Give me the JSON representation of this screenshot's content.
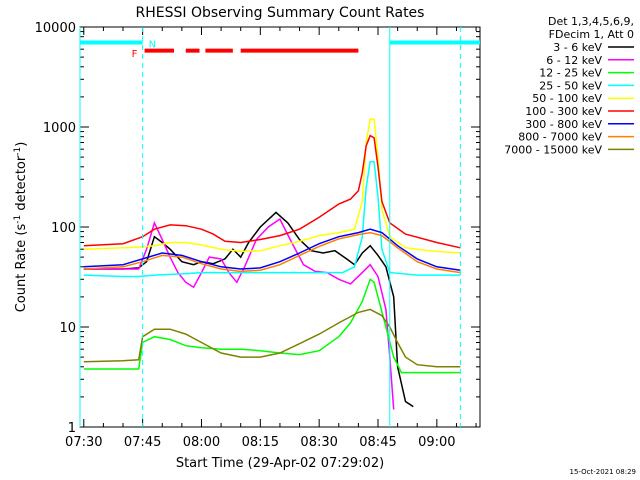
{
  "chart_data": {
    "type": "line",
    "title": "RHESSI Observing Summary Count Rates",
    "xlabel": "Start Time (29-Apr-02 07:29:02)",
    "ylabel": "Count Rate (s",
    "ylabel_sup1": "-1",
    "ylabel_mid": " detector",
    "ylabel_sup2": "-1",
    "ylabel_end": ")",
    "yscale": "log",
    "ylim": [
      1,
      10000
    ],
    "xlim": [
      "07:29:02",
      "09:11:00"
    ],
    "x_ticks": [
      "07:30",
      "07:45",
      "08:00",
      "08:15",
      "08:30",
      "08:45",
      "09:00"
    ],
    "y_ticks": [
      "1",
      "10",
      "100",
      "1000",
      "10000"
    ],
    "legend_position": "top-right",
    "legend_header": [
      "Det 1,3,4,5,6,9,",
      "FDecim 1, Att 0"
    ],
    "series": [
      {
        "name": "3 - 6 keV",
        "color": "#000000",
        "points": [
          [
            "07:30",
            38
          ],
          [
            "07:40",
            38
          ],
          [
            "07:44",
            39
          ],
          [
            "07:46",
            45
          ],
          [
            "07:48",
            80
          ],
          [
            "07:50",
            70
          ],
          [
            "07:52",
            60
          ],
          [
            "07:55",
            45
          ],
          [
            "07:58",
            42
          ],
          [
            "08:00",
            45
          ],
          [
            "08:03",
            43
          ],
          [
            "08:06",
            48
          ],
          [
            "08:08",
            60
          ],
          [
            "08:10",
            50
          ],
          [
            "08:12",
            70
          ],
          [
            "08:15",
            100
          ],
          [
            "08:19",
            140
          ],
          [
            "08:22",
            110
          ],
          [
            "08:25",
            75
          ],
          [
            "08:28",
            58
          ],
          [
            "08:31",
            55
          ],
          [
            "08:34",
            58
          ],
          [
            "08:37",
            48
          ],
          [
            "08:39",
            42
          ],
          [
            "08:41",
            55
          ],
          [
            "08:43",
            65
          ],
          [
            "08:45",
            52
          ],
          [
            "08:47",
            40
          ],
          [
            "08:49",
            20
          ],
          [
            "08:50",
            4
          ],
          [
            "08:52",
            1.8
          ],
          [
            "08:54",
            1.6
          ]
        ]
      },
      {
        "name": "6 - 12 keV",
        "color": "#ff00ff",
        "points": [
          [
            "07:30",
            38
          ],
          [
            "07:40",
            38
          ],
          [
            "07:44",
            38
          ],
          [
            "07:46",
            60
          ],
          [
            "07:48",
            110
          ],
          [
            "07:50",
            75
          ],
          [
            "07:52",
            50
          ],
          [
            "07:54",
            35
          ],
          [
            "07:56",
            28
          ],
          [
            "07:58",
            25
          ],
          [
            "08:00",
            35
          ],
          [
            "08:02",
            50
          ],
          [
            "08:05",
            48
          ],
          [
            "08:07",
            35
          ],
          [
            "08:09",
            28
          ],
          [
            "08:11",
            40
          ],
          [
            "08:14",
            75
          ],
          [
            "08:17",
            100
          ],
          [
            "08:20",
            120
          ],
          [
            "08:23",
            70
          ],
          [
            "08:26",
            42
          ],
          [
            "08:29",
            36
          ],
          [
            "08:32",
            35
          ],
          [
            "08:35",
            30
          ],
          [
            "08:38",
            27
          ],
          [
            "08:41",
            35
          ],
          [
            "08:43",
            42
          ],
          [
            "08:45",
            32
          ],
          [
            "08:47",
            15
          ],
          [
            "08:48",
            5
          ],
          [
            "08:49",
            1.5
          ]
        ]
      },
      {
        "name": "12 - 25 keV",
        "color": "#00ff00",
        "points": [
          [
            "07:30",
            3.8
          ],
          [
            "07:40",
            3.8
          ],
          [
            "07:44",
            3.8
          ],
          [
            "07:45",
            7
          ],
          [
            "07:48",
            8
          ],
          [
            "07:52",
            7.5
          ],
          [
            "07:56",
            6.5
          ],
          [
            "08:00",
            6.2
          ],
          [
            "08:05",
            6.0
          ],
          [
            "08:10",
            6.0
          ],
          [
            "08:15",
            5.8
          ],
          [
            "08:20",
            5.5
          ],
          [
            "08:25",
            5.3
          ],
          [
            "08:30",
            5.8
          ],
          [
            "08:35",
            8
          ],
          [
            "08:38",
            11
          ],
          [
            "08:41",
            18
          ],
          [
            "08:43",
            30
          ],
          [
            "08:44",
            28
          ],
          [
            "08:45",
            20
          ],
          [
            "08:47",
            10
          ],
          [
            "08:49",
            5
          ],
          [
            "08:51",
            3.5
          ],
          [
            "09:00",
            3.5
          ],
          [
            "09:06",
            3.5
          ]
        ]
      },
      {
        "name": "25 - 50 keV",
        "color": "#00ffff",
        "points": [
          [
            "07:30",
            33
          ],
          [
            "07:40",
            32
          ],
          [
            "07:44",
            32
          ],
          [
            "07:48",
            33
          ],
          [
            "07:55",
            34
          ],
          [
            "08:00",
            35
          ],
          [
            "08:10",
            35
          ],
          [
            "08:20",
            35
          ],
          [
            "08:30",
            35
          ],
          [
            "08:36",
            35
          ],
          [
            "08:39",
            40
          ],
          [
            "08:41",
            80
          ],
          [
            "08:42",
            250
          ],
          [
            "08:43",
            450
          ],
          [
            "08:44",
            450
          ],
          [
            "08:45",
            200
          ],
          [
            "08:46",
            60
          ],
          [
            "08:48",
            35
          ],
          [
            "08:55",
            33
          ],
          [
            "09:00",
            33
          ],
          [
            "09:06",
            33
          ]
        ]
      },
      {
        "name": "50 - 100 keV",
        "color": "#ffff00",
        "points": [
          [
            "07:30",
            60
          ],
          [
            "07:40",
            62
          ],
          [
            "07:44",
            63
          ],
          [
            "07:48",
            65
          ],
          [
            "07:52",
            70
          ],
          [
            "07:56",
            70
          ],
          [
            "08:00",
            66
          ],
          [
            "08:05",
            60
          ],
          [
            "08:10",
            57
          ],
          [
            "08:15",
            58
          ],
          [
            "08:20",
            65
          ],
          [
            "08:25",
            72
          ],
          [
            "08:30",
            82
          ],
          [
            "08:35",
            88
          ],
          [
            "08:39",
            95
          ],
          [
            "08:41",
            180
          ],
          [
            "08:42",
            700
          ],
          [
            "08:43",
            1200
          ],
          [
            "08:44",
            1200
          ],
          [
            "08:45",
            500
          ],
          [
            "08:46",
            150
          ],
          [
            "08:48",
            80
          ],
          [
            "08:52",
            62
          ],
          [
            "08:58",
            58
          ],
          [
            "09:06",
            55
          ]
        ]
      },
      {
        "name": "100 - 300 keV",
        "color": "#ff0000",
        "points": [
          [
            "07:30",
            65
          ],
          [
            "07:40",
            68
          ],
          [
            "07:45",
            80
          ],
          [
            "07:48",
            95
          ],
          [
            "07:52",
            105
          ],
          [
            "07:56",
            103
          ],
          [
            "08:00",
            95
          ],
          [
            "08:03",
            85
          ],
          [
            "08:06",
            72
          ],
          [
            "08:10",
            70
          ],
          [
            "08:15",
            75
          ],
          [
            "08:20",
            82
          ],
          [
            "08:25",
            95
          ],
          [
            "08:30",
            125
          ],
          [
            "08:35",
            170
          ],
          [
            "08:38",
            190
          ],
          [
            "08:40",
            230
          ],
          [
            "08:41",
            350
          ],
          [
            "08:42",
            650
          ],
          [
            "08:43",
            820
          ],
          [
            "08:44",
            780
          ],
          [
            "08:45",
            400
          ],
          [
            "08:46",
            180
          ],
          [
            "08:48",
            110
          ],
          [
            "08:52",
            85
          ],
          [
            "09:00",
            70
          ],
          [
            "09:06",
            62
          ]
        ]
      },
      {
        "name": "300 - 800 keV",
        "color": "#0000ff",
        "points": [
          [
            "07:30",
            40
          ],
          [
            "07:40",
            42
          ],
          [
            "07:45",
            48
          ],
          [
            "07:50",
            55
          ],
          [
            "07:55",
            52
          ],
          [
            "08:00",
            45
          ],
          [
            "08:05",
            40
          ],
          [
            "08:10",
            38
          ],
          [
            "08:15",
            39
          ],
          [
            "08:20",
            45
          ],
          [
            "08:25",
            55
          ],
          [
            "08:30",
            68
          ],
          [
            "08:35",
            80
          ],
          [
            "08:40",
            88
          ],
          [
            "08:43",
            95
          ],
          [
            "08:46",
            88
          ],
          [
            "08:50",
            65
          ],
          [
            "08:55",
            48
          ],
          [
            "09:00",
            40
          ],
          [
            "09:06",
            37
          ]
        ]
      },
      {
        "name": "800 - 7000 keV",
        "color": "#ff8000",
        "points": [
          [
            "07:30",
            38
          ],
          [
            "07:40",
            40
          ],
          [
            "07:45",
            45
          ],
          [
            "07:50",
            52
          ],
          [
            "07:55",
            50
          ],
          [
            "08:00",
            43
          ],
          [
            "08:05",
            38
          ],
          [
            "08:10",
            36
          ],
          [
            "08:15",
            37
          ],
          [
            "08:20",
            42
          ],
          [
            "08:25",
            52
          ],
          [
            "08:30",
            64
          ],
          [
            "08:35",
            76
          ],
          [
            "08:40",
            84
          ],
          [
            "08:43",
            88
          ],
          [
            "08:46",
            82
          ],
          [
            "08:50",
            62
          ],
          [
            "08:55",
            45
          ],
          [
            "09:00",
            38
          ],
          [
            "09:06",
            35
          ]
        ]
      },
      {
        "name": "7000 - 15000 keV",
        "color": "#808000",
        "points": [
          [
            "07:30",
            4.5
          ],
          [
            "07:40",
            4.6
          ],
          [
            "07:44",
            4.7
          ],
          [
            "07:45",
            8
          ],
          [
            "07:48",
            9.5
          ],
          [
            "07:52",
            9.5
          ],
          [
            "07:56",
            8.5
          ],
          [
            "08:00",
            7
          ],
          [
            "08:05",
            5.5
          ],
          [
            "08:10",
            5.0
          ],
          [
            "08:15",
            5.0
          ],
          [
            "08:20",
            5.5
          ],
          [
            "08:25",
            6.8
          ],
          [
            "08:30",
            8.5
          ],
          [
            "08:35",
            11
          ],
          [
            "08:40",
            14
          ],
          [
            "08:43",
            15
          ],
          [
            "08:46",
            13
          ],
          [
            "08:48",
            10
          ],
          [
            "08:50",
            7
          ],
          [
            "08:52",
            5
          ],
          [
            "08:55",
            4.2
          ],
          [
            "09:00",
            4.0
          ],
          [
            "09:06",
            4.0
          ]
        ]
      }
    ],
    "annotations": [
      {
        "text": "N",
        "color": "#00ffff",
        "time": "07:45:00",
        "level": 7000
      },
      {
        "text": "F",
        "color": "#ff0000",
        "time": "07:44:30",
        "level": 5600
      }
    ],
    "status_bars": [
      {
        "color": "#00ffff",
        "level": 7000,
        "segments": [
          [
            "07:29:02",
            "07:45:00"
          ],
          [
            "08:48:00",
            "09:11:00"
          ]
        ]
      },
      {
        "color": "#ff0000",
        "level": 5800,
        "segments": [
          [
            "07:45:30",
            "07:53:00"
          ],
          [
            "07:56:00",
            "07:59:30"
          ],
          [
            "08:01:00",
            "08:08:00"
          ],
          [
            "08:10:00",
            "08:40:00"
          ]
        ]
      }
    ],
    "vlines": [
      {
        "time": "07:29:02",
        "color": "#00ffff",
        "style": "solid"
      },
      {
        "time": "07:45:00",
        "color": "#00ffff",
        "style": "dashed"
      },
      {
        "time": "08:48:00",
        "color": "#00ffff",
        "style": "solid"
      },
      {
        "time": "09:06:00",
        "color": "#00ffff",
        "style": "dashed"
      }
    ]
  },
  "footer": {
    "timestamp": "15-Oct-2021 08:29"
  }
}
